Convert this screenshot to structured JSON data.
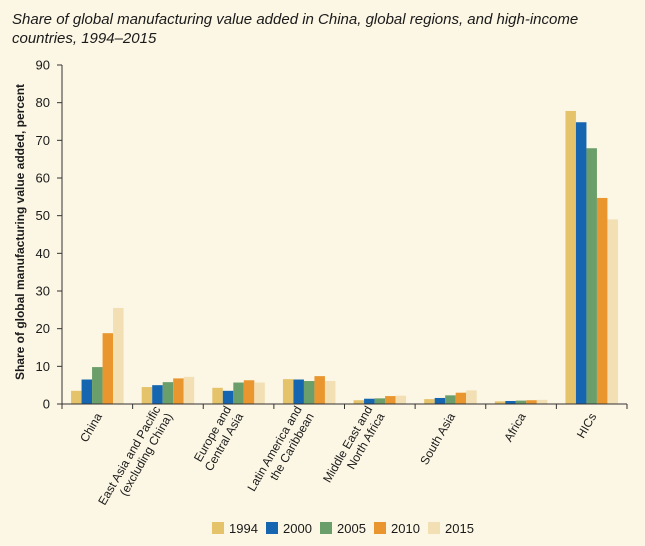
{
  "title": "Share of global manufacturing value added in China, global regions, and high-income countries, 1994–2015",
  "colors": {
    "1994": "#e5c36b",
    "2000": "#1565b0",
    "2005": "#6a9e6a",
    "2010": "#e9962f",
    "2015": "#f2dfb4",
    "axis": "#333333",
    "background": "#fcf6e4"
  },
  "chart_data": {
    "type": "bar",
    "title": "Share of global manufacturing value added in China, global regions, and high-income countries, 1994–2015",
    "xlabel": "",
    "ylabel": "Share of global manufacturing value added, percent",
    "ylim": [
      0,
      90
    ],
    "yticks": [
      0,
      10,
      20,
      30,
      40,
      50,
      60,
      70,
      80,
      90
    ],
    "grid": false,
    "legend_position": "bottom",
    "categories": [
      [
        "China"
      ],
      [
        "East Asia and Pacific",
        "(excluding China)"
      ],
      [
        "Europe and",
        "Central Asia"
      ],
      [
        "Latin America and",
        "the Caribbean"
      ],
      [
        "Middle East and",
        "North Africa"
      ],
      [
        "South Asia"
      ],
      [
        "Africa"
      ],
      [
        "HICs"
      ]
    ],
    "series": [
      {
        "name": "1994",
        "values": [
          3.5,
          4.5,
          4.3,
          6.6,
          1.0,
          1.3,
          0.7,
          77.8
        ]
      },
      {
        "name": "2000",
        "values": [
          6.5,
          5.0,
          3.5,
          6.5,
          1.4,
          1.6,
          0.8,
          74.8
        ]
      },
      {
        "name": "2005",
        "values": [
          9.8,
          5.8,
          5.7,
          6.1,
          1.5,
          2.3,
          0.9,
          67.9
        ]
      },
      {
        "name": "2010",
        "values": [
          18.8,
          6.8,
          6.3,
          7.4,
          2.1,
          3.0,
          1.0,
          54.7
        ]
      },
      {
        "name": "2015",
        "values": [
          25.5,
          7.2,
          5.7,
          6.1,
          2.2,
          3.6,
          1.1,
          49.0
        ]
      }
    ]
  }
}
